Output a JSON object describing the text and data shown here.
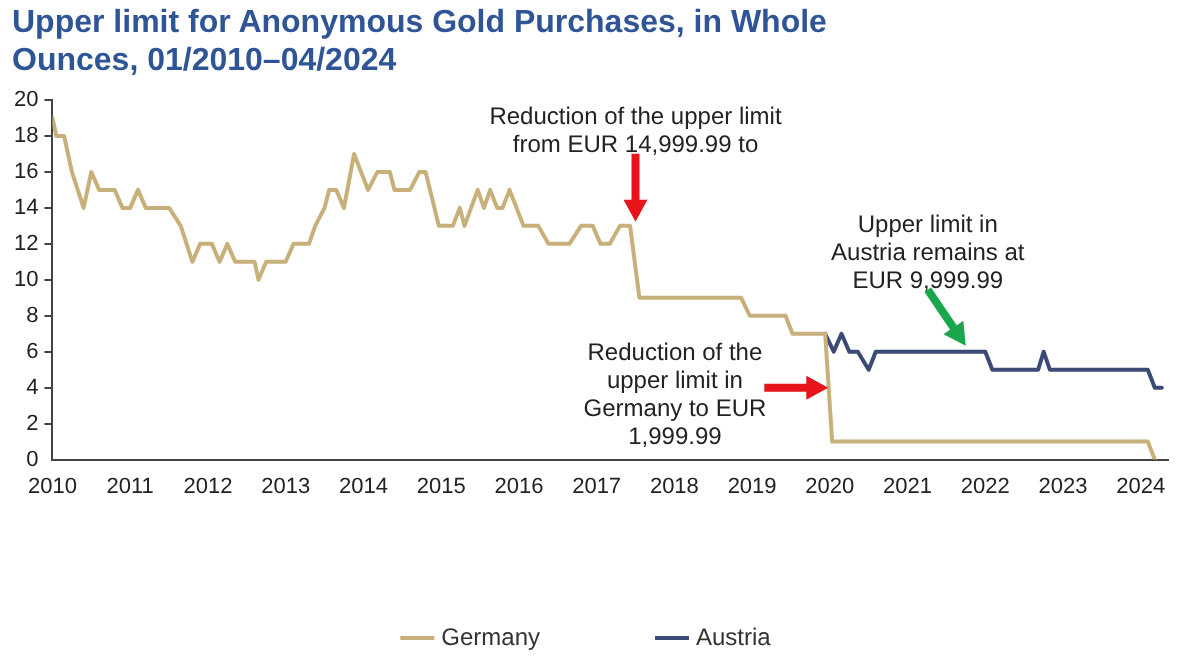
{
  "chart_data": {
    "type": "line",
    "title": "Upper limit for Anonymous Gold Purchases, in Whole Ounces, 01/2010–04/2024",
    "series": [
      {
        "name": "Germany",
        "color": "#c8b07a",
        "x": [
          2010,
          2010.05,
          2010.15,
          2010.25,
          2010.4,
          2010.5,
          2010.6,
          2010.8,
          2010.9,
          2011,
          2011.1,
          2011.2,
          2011.5,
          2011.65,
          2011.8,
          2011.9,
          2012.05,
          2012.15,
          2012.25,
          2012.35,
          2012.6,
          2012.65,
          2012.75,
          2013,
          2013.1,
          2013.3,
          2013.38,
          2013.5,
          2013.56,
          2013.65,
          2013.75,
          2013.88,
          2014.06,
          2014.18,
          2014.34,
          2014.4,
          2014.6,
          2014.72,
          2014.8,
          2014.97,
          2015.15,
          2015.24,
          2015.3,
          2015.47,
          2015.55,
          2015.63,
          2015.72,
          2015.79,
          2015.88,
          2016.06,
          2016.25,
          2016.38,
          2016.65,
          2016.8,
          2016.95,
          2017.05,
          2017.17,
          2017.3,
          2017.43,
          2017.55,
          2018.86,
          2018.97,
          2019.43,
          2019.52,
          2019.94,
          2020.03,
          2024.09,
          2024.18
        ],
        "values": [
          19,
          18,
          18,
          16,
          14,
          16,
          15,
          15,
          14,
          14,
          15,
          14,
          14,
          13,
          11,
          12,
          12,
          11,
          12,
          11,
          11,
          10,
          11,
          11,
          12,
          12,
          13,
          14,
          15,
          15,
          14,
          17,
          15,
          16,
          16,
          15,
          15,
          16,
          16,
          13,
          13,
          14,
          13,
          15,
          14,
          15,
          14,
          14,
          15,
          13,
          13,
          12,
          12,
          13,
          13,
          12,
          12,
          13,
          13,
          9,
          9,
          8,
          8,
          7,
          7,
          1,
          1,
          0
        ]
      },
      {
        "name": "Austria",
        "color": "#3b4a74",
        "x": [
          2019.94,
          2020.05,
          2020.15,
          2020.25,
          2020.36,
          2020.5,
          2020.59,
          2022,
          2022.09,
          2022.68,
          2022.75,
          2022.83,
          2024.09,
          2024.18,
          2024.27
        ],
        "values": [
          7,
          6,
          7,
          6,
          6,
          5,
          6,
          6,
          5,
          5,
          6,
          5,
          5,
          4,
          4
        ]
      }
    ],
    "xlim": [
      2010,
      2024.35
    ],
    "xticks": [
      2010,
      2011,
      2012,
      2013,
      2014,
      2015,
      2016,
      2017,
      2018,
      2019,
      2020,
      2021,
      2022,
      2023,
      2024
    ],
    "ylim": [
      0,
      20
    ],
    "yticks": [
      0,
      2,
      4,
      6,
      8,
      10,
      12,
      14,
      16,
      18,
      20
    ],
    "grid": false,
    "legend": "bottom",
    "marker": "none",
    "line_style": "solid",
    "annotations": [
      {
        "text": "Reduction of the upper limit from EUR 14,999.99 to",
        "x": 2017.5,
        "y": 13
      },
      {
        "text": "Reduction of the upper limit in Germany to EUR 1,999.99",
        "x": 2019.98,
        "y": 4
      },
      {
        "text": "Upper limit in Austria remains at EUR 9,999.99",
        "x": 2021.8,
        "y": 6
      }
    ]
  }
}
